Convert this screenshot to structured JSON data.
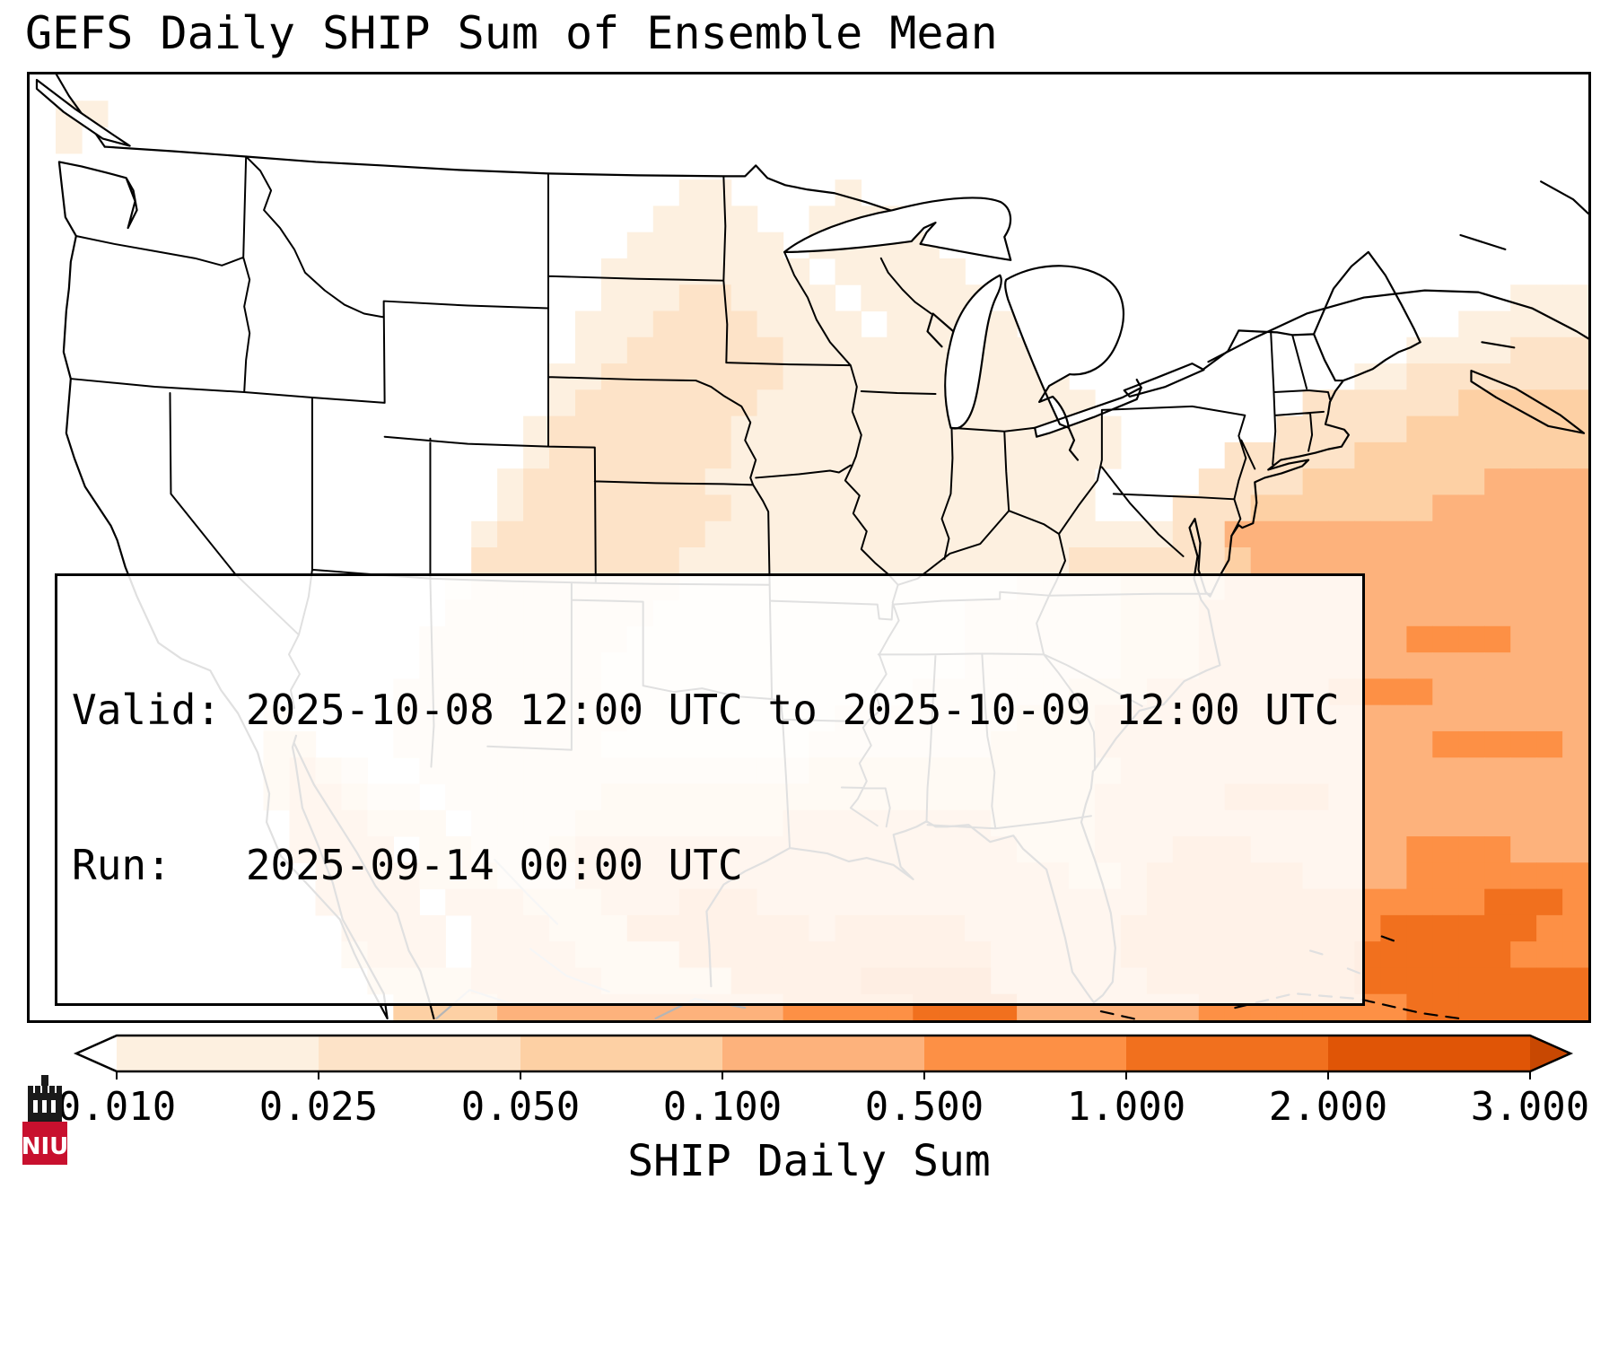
{
  "title": "GEFS Daily SHIP Sum of Ensemble Mean",
  "info_box": {
    "valid_line": "Valid: 2025-10-08 12:00 UTC to 2025-10-09 12:00 UTC",
    "run_line": "Run:   2025-09-14 00:00 UTC"
  },
  "colorbar": {
    "label": "SHIP Daily Sum",
    "tick_labels": [
      "0.010",
      "0.025",
      "0.050",
      "0.100",
      "0.500",
      "1.000",
      "2.000",
      "3.000"
    ],
    "segment_colors": [
      "#fdf0e0",
      "#fde3c8",
      "#fdd0a4",
      "#fdb27c",
      "#fd9045",
      "#f1701e",
      "#e05506"
    ],
    "under_color": "#ffffff",
    "over_color": "#c84802",
    "outline_color": "#000000"
  },
  "logo": {
    "text": "NIU",
    "color": "#c8102e",
    "tower_color": "#1a1a1a"
  },
  "chart_data": {
    "type": "heatmap",
    "title": "GEFS Daily SHIP Sum of Ensemble Mean",
    "colorbar_label": "SHIP Daily Sum",
    "valid": "2025-10-08 12:00 UTC to 2025-10-09 12:00 UTC",
    "run": "2025-09-14 00:00 UTC",
    "region": "CONUS / Gulf of Mexico / NW Atlantic",
    "levels": [
      0.01,
      0.025,
      0.05,
      0.1,
      0.5,
      1.0,
      2.0,
      3.0
    ],
    "legend_position": "bottom",
    "grid_on": false,
    "palette": [
      "#ffffff",
      "#fdf0e0",
      "#fde3c8",
      "#fdd0a4",
      "#fdb27c",
      "#fd9045",
      "#f1701e",
      "#e05506"
    ],
    "grid_cols": 60,
    "grid_rows": 36,
    "grid": [
      "000000000000000000000000000000000000000000000000000000000000",
      "011000000000000000000000000000000000000000000000000000000000",
      "010000000000000000000000000000000000000000000000000000000000",
      "000000000000000000000000000000000000000000000000000000000000",
      "000000000000000000000000011000010000000000000000000000000000",
      "000000000000000000000000111100111100000000000000000000000000",
      "000000000000000000000001111110111110000000000000000000000000",
      "000000000000000000000011111111011111000000000000000000000000",
      "000000000000000000000011122111101111100000000000000000000111",
      "000000000000000000000111222211110111110000000000000000011111",
      "000000000000000000000112222221111111111000000000000001111222",
      "000000000000000000001122222221111111111100000000000112222222",
      "000000000000000000001222222211111111111110000000022222233333",
      "000000000000000000012222222111111111111111000000222223333333",
      "000000000000000000012222222111111111111111000022222333333333",
      "000000000000000000122222221111111111111110000222233333334444",
      "000000000000000000122222222111111111111110002223333333444444",
      "000000000000000001222222221111111111111111112244444444444444",
      "000000000000000002222222211111111111111122222234444444444444",
      "000000000000000012222222211111111111112222333344444444444444",
      "000000000000000022222222111111111111222222333444444444444444",
      "000000000000000222222221111111111111222222333444444445555444",
      "000000000000000222222211111111111111222222333444444444444444",
      "000000000000002222222211111111111122222233344444445555444444",
      "000000000200002222222221111111122222223334444444444444444444",
      "000000000330002222222211111111222222233334444444444444555554",
      "000000000343200222222222222222333333333333444444444444444444",
      "000000000344322022222233333333333333333334444455554444444444",
      "000000000044433302222333333334444444433334444444444444444444",
      "000000000044440332223444444444444444443334445554444445555444",
      "000000000004444333222444444444444444444433455555544445555555",
      "000000000004444044433344455544444444444444455555555555556665",
      "000000000000444404443335555555455555444444555555555566666655",
      "000000000000344404444333355555555555544444555555555666666555",
      "000000000000033334444433333555556666644444455555555666666666",
      "000000000000003333444444444445555566664444444555555556666666"
    ]
  }
}
